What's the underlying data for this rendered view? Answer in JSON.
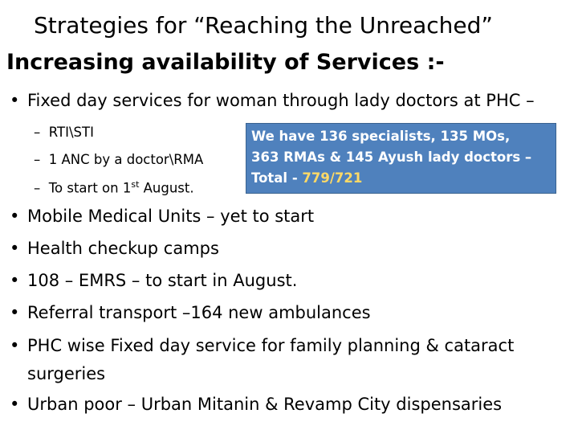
{
  "title": {
    "line1": "Strategies for “Reaching  the Unreached”",
    "line2": "Increasing  availability  of Services :-"
  },
  "bullet_glyph": "•",
  "bullets": {
    "b0": "Fixed day services for woman through lady doctors at PHC –",
    "b1": "Mobile Medical Units – yet to start",
    "b2": "Health checkup camps",
    "b3": "108 – EMRS – to start in August.",
    "b4": "Referral transport –164 new ambulances",
    "b5_line1": "PHC wise Fixed day service for family planning & cataract",
    "b5_line2": "surgeries",
    "b6": "Urban poor – Urban Mitanin & Revamp City dispensaries"
  },
  "sub_bullets": {
    "dash": "–",
    "s1": "RTI\\STI",
    "s2": "1 ANC by a doctor\\RMA",
    "s3_prefix": "To start on 1",
    "s3_sup": "st",
    "s3_suffix": " August."
  },
  "callout": {
    "line1": "We have 136 specialists, 135 MOs,",
    "line2": "363 RMAs & 145 Ayush lady doctors –",
    "line3_prefix": "Total - ",
    "line3_value": "779/721",
    "bg_color": "#4f81bd",
    "highlight_color": "#ffd966"
  }
}
